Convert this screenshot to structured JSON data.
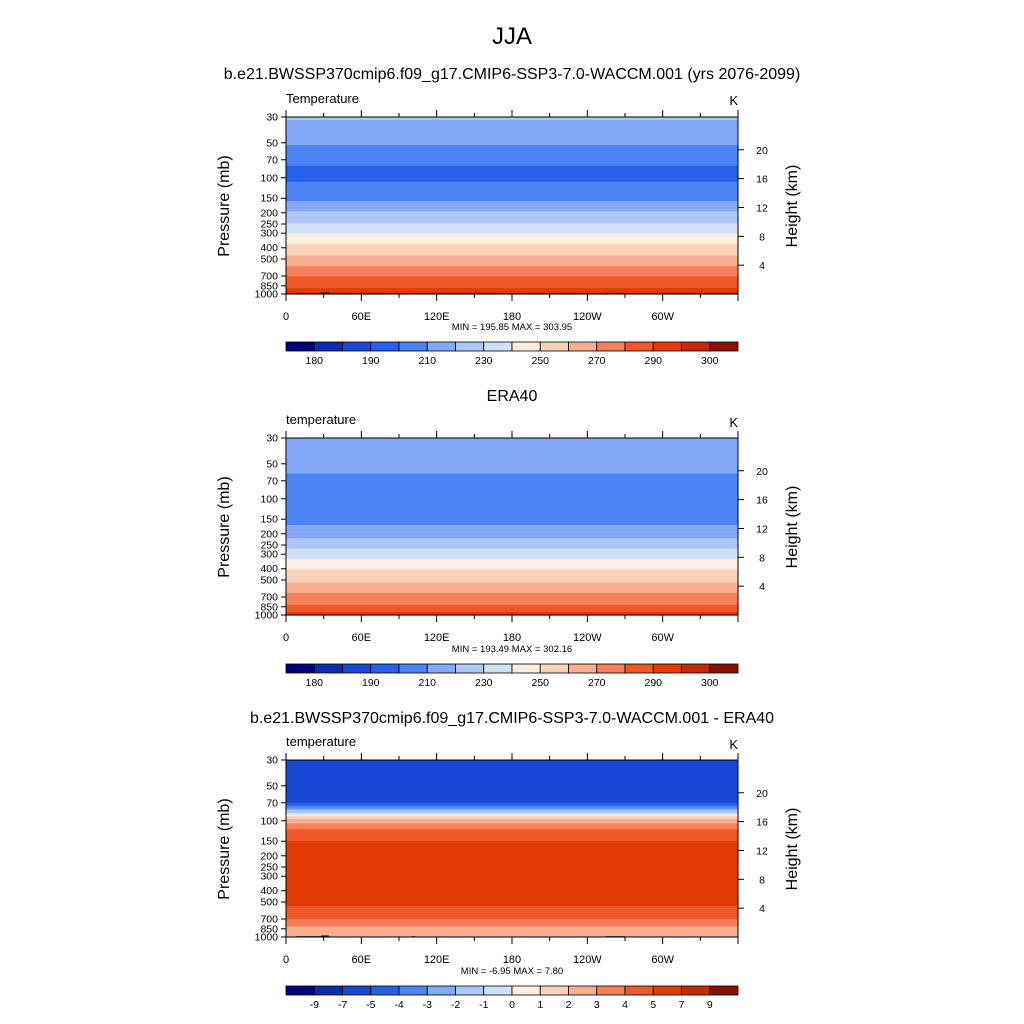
{
  "figure": {
    "season": "JJA",
    "colors": {
      "land_mask": "#000000",
      "frame": "#000000"
    }
  },
  "panels": [
    {
      "id": "model",
      "title": "b.e21.BWSSP370cmip6.f09_g17.CMIP6-SSP3-7.0-WACCM.001 (yrs 2076-2099)",
      "left_label": "Temperature",
      "right_label": "K",
      "ylabel": "Pressure (mb)",
      "ylabel_right": "Height (km)",
      "stats": "MIN = 195.85  MAX = 303.95",
      "colorbar_labels": [
        "180",
        "190",
        "210",
        "230",
        "250",
        "270",
        "290",
        "300"
      ]
    },
    {
      "id": "obs",
      "title": "ERA40",
      "left_label": "temperature",
      "right_label": "K",
      "ylabel": "Pressure (mb)",
      "ylabel_right": "Height (km)",
      "stats": "MIN = 193.49  MAX = 302.16",
      "colorbar_labels": [
        "180",
        "190",
        "210",
        "230",
        "250",
        "270",
        "290",
        "300"
      ]
    },
    {
      "id": "diff",
      "title": "b.e21.BWSSP370cmip6.f09_g17.CMIP6-SSP3-7.0-WACCM.001 - ERA40",
      "left_label": "temperature",
      "right_label": "K",
      "ylabel": "Pressure (mb)",
      "ylabel_right": "Height (km)",
      "stats": "MIN =  -6.95  MAX =   7.80",
      "colorbar_labels": [
        "-9",
        "-7",
        "-5",
        "-4",
        "-3",
        "-2",
        "-1",
        "0",
        "1",
        "2",
        "3",
        "4",
        "5",
        "7",
        "9"
      ]
    }
  ],
  "chart_data": [
    {
      "type": "heatmap",
      "title": "b.e21.BWSSP370cmip6.f09_g17.CMIP6-SSP3-7.0-WACCM.001 (yrs 2076-2099)",
      "variable": "Temperature",
      "units": "K",
      "xlabel": "",
      "ylabel": "Pressure (mb)",
      "ylabel_right": "Height (km)",
      "x_ticks": [
        "0",
        "60E",
        "120E",
        "180",
        "120W",
        "60W"
      ],
      "x_tick_values": [
        0,
        60,
        120,
        180,
        240,
        300
      ],
      "xlim": [
        0,
        360
      ],
      "y_ticks": [
        30,
        50,
        70,
        100,
        150,
        200,
        250,
        300,
        400,
        500,
        700,
        850,
        1000
      ],
      "ylim": [
        1000,
        30
      ],
      "y_right_ticks": [
        4,
        8,
        12,
        16,
        20
      ],
      "min": 195.85,
      "max": 303.95,
      "profile": [
        [
          30,
          221
        ],
        [
          50,
          211
        ],
        [
          70,
          201
        ],
        [
          100,
          198
        ],
        [
          150,
          208
        ],
        [
          200,
          221
        ],
        [
          250,
          231
        ],
        [
          300,
          240
        ],
        [
          400,
          253
        ],
        [
          500,
          263
        ],
        [
          700,
          280
        ],
        [
          850,
          288
        ],
        [
          1000,
          297
        ]
      ],
      "levels": [
        180,
        185,
        190,
        200,
        210,
        220,
        230,
        240,
        250,
        260,
        270,
        280,
        290,
        295,
        300
      ],
      "colors": [
        "#000080",
        "#0d2bb0",
        "#1a48d6",
        "#2760ea",
        "#4d84f5",
        "#84a9f7",
        "#adc6f8",
        "#d0e1f7",
        "#fbeee0",
        "#fbd1ba",
        "#f7ae8f",
        "#f4805c",
        "#f0582a",
        "#e33a08",
        "#c42a05",
        "#881000"
      ],
      "colorbar_labels": [
        "180",
        "190",
        "210",
        "230",
        "250",
        "270",
        "290",
        "300"
      ],
      "land_mask": true
    },
    {
      "type": "heatmap",
      "title": "ERA40",
      "variable": "temperature",
      "units": "K",
      "xlabel": "",
      "ylabel": "Pressure (mb)",
      "ylabel_right": "Height (km)",
      "x_ticks": [
        "0",
        "60E",
        "120E",
        "180",
        "120W",
        "60W"
      ],
      "x_tick_values": [
        0,
        60,
        120,
        180,
        240,
        300
      ],
      "xlim": [
        0,
        360
      ],
      "y_ticks": [
        30,
        50,
        70,
        100,
        150,
        200,
        250,
        300,
        400,
        500,
        700,
        850,
        1000
      ],
      "ylim": [
        1000,
        30
      ],
      "y_right_ticks": [
        4,
        8,
        12,
        16,
        20
      ],
      "min": 193.49,
      "max": 302.16,
      "profile": [
        [
          30,
          218
        ],
        [
          50,
          213
        ],
        [
          70,
          208
        ],
        [
          100,
          201
        ],
        [
          150,
          206
        ],
        [
          200,
          216
        ],
        [
          250,
          226
        ],
        [
          300,
          236
        ],
        [
          400,
          249
        ],
        [
          500,
          258
        ],
        [
          700,
          273
        ],
        [
          850,
          282
        ],
        [
          1000,
          293
        ]
      ],
      "levels": [
        180,
        185,
        190,
        200,
        210,
        220,
        230,
        240,
        250,
        260,
        270,
        280,
        290,
        295,
        300
      ],
      "colors": [
        "#000080",
        "#0d2bb0",
        "#1a48d6",
        "#2760ea",
        "#4d84f5",
        "#84a9f7",
        "#adc6f8",
        "#d0e1f7",
        "#fbeee0",
        "#fbd1ba",
        "#f7ae8f",
        "#f4805c",
        "#f0582a",
        "#e33a08",
        "#c42a05",
        "#881000"
      ],
      "colorbar_labels": [
        "180",
        "190",
        "210",
        "230",
        "250",
        "270",
        "290",
        "300"
      ],
      "land_mask": false
    },
    {
      "type": "heatmap",
      "title": "b.e21.BWSSP370cmip6.f09_g17.CMIP6-SSP3-7.0-WACCM.001 - ERA40",
      "variable": "temperature",
      "units": "K",
      "xlabel": "",
      "ylabel": "Pressure (mb)",
      "ylabel_right": "Height (km)",
      "x_ticks": [
        "0",
        "60E",
        "120E",
        "180",
        "120W",
        "60W"
      ],
      "x_tick_values": [
        0,
        60,
        120,
        180,
        240,
        300
      ],
      "xlim": [
        0,
        360
      ],
      "y_ticks": [
        30,
        50,
        70,
        100,
        150,
        200,
        250,
        300,
        400,
        500,
        700,
        850,
        1000
      ],
      "ylim": [
        1000,
        30
      ],
      "y_right_ticks": [
        4,
        8,
        12,
        16,
        20
      ],
      "min": -6.95,
      "max": 7.8,
      "profile": [
        [
          30,
          -6.2
        ],
        [
          50,
          -6.0
        ],
        [
          70,
          -5.0
        ],
        [
          80,
          -2.5
        ],
        [
          90,
          0.5
        ],
        [
          100,
          2.5
        ],
        [
          120,
          4.0
        ],
        [
          150,
          5.0
        ],
        [
          200,
          5.6
        ],
        [
          250,
          6.3
        ],
        [
          300,
          6.5
        ],
        [
          400,
          6.0
        ],
        [
          500,
          5.3
        ],
        [
          700,
          4.1
        ],
        [
          850,
          2.8
        ],
        [
          1000,
          2.2
        ]
      ],
      "levels": [
        -9,
        -7,
        -5,
        -4,
        -3,
        -2,
        -1,
        0,
        1,
        2,
        3,
        4,
        5,
        7,
        9
      ],
      "colors": [
        "#000080",
        "#0d2bb0",
        "#1a48d6",
        "#2760ea",
        "#4d84f5",
        "#84a9f7",
        "#adc6f8",
        "#d0e1f7",
        "#fbeee0",
        "#fbd1ba",
        "#f7ae8f",
        "#f4805c",
        "#f0582a",
        "#e33a08",
        "#c42a05",
        "#881000"
      ],
      "colorbar_labels": [
        "-9",
        "-7",
        "-5",
        "-4",
        "-3",
        "-2",
        "-1",
        "0",
        "1",
        "2",
        "3",
        "4",
        "5",
        "7",
        "9"
      ],
      "land_mask": true
    }
  ]
}
